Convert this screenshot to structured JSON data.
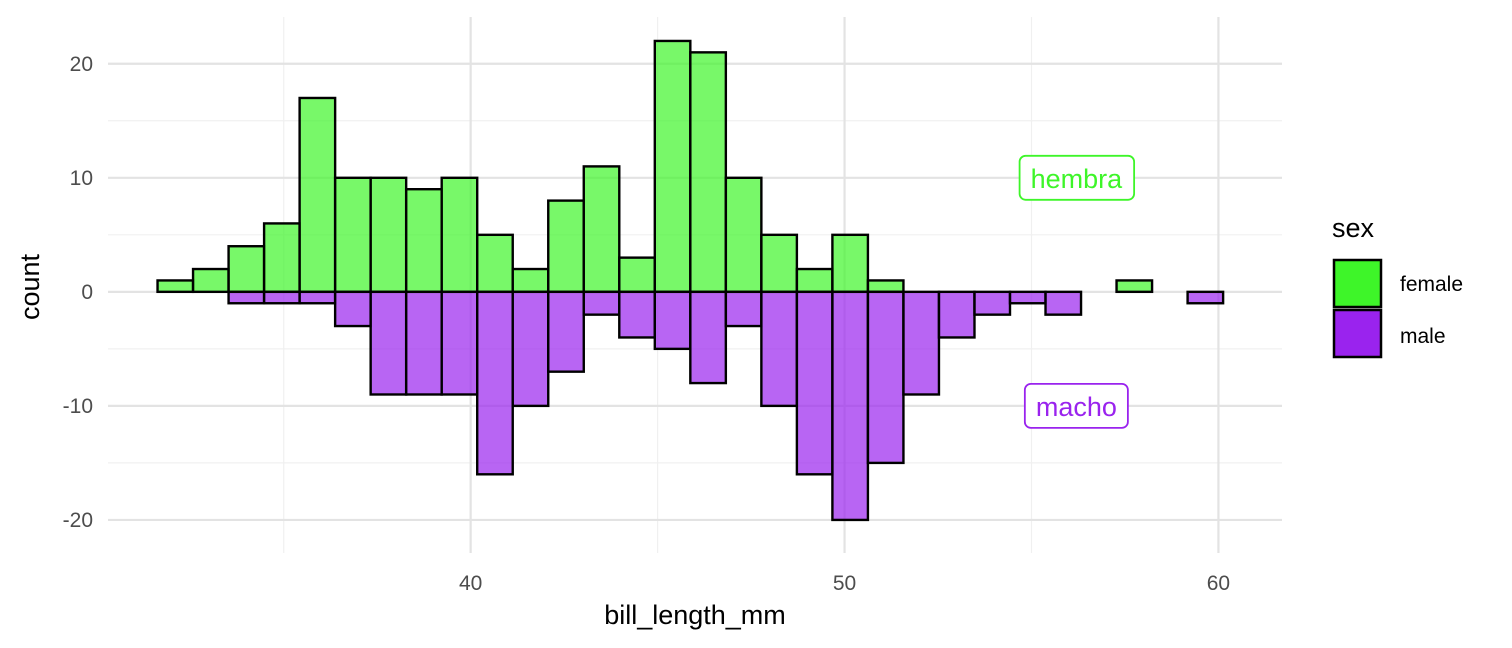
{
  "chart_data": {
    "type": "bar",
    "xlabel": "bill_length_mm",
    "ylabel": "count",
    "xlim": [
      30.3,
      61.7
    ],
    "ylim": [
      -22.9,
      24.1
    ],
    "x_ticks": [
      40,
      50,
      60
    ],
    "y_ticks": [
      -20,
      -10,
      0,
      10,
      20
    ],
    "grid": true,
    "bin_width": 0.95,
    "series": [
      {
        "name": "female",
        "color": "#3ef529",
        "direction": "up",
        "bin_centers": [
          32.1,
          33.05,
          34.0,
          34.95,
          35.9,
          36.85,
          37.8,
          38.75,
          39.7,
          40.65,
          41.6,
          42.55,
          43.5,
          44.45,
          45.4,
          46.35,
          47.3,
          48.25,
          49.2,
          50.15,
          51.1,
          52.05,
          53.0,
          53.95,
          54.9,
          55.85,
          56.8,
          57.75,
          58.7,
          59.65
        ],
        "values": [
          1,
          2,
          4,
          6,
          17,
          10,
          10,
          9,
          10,
          5,
          2,
          8,
          11,
          3,
          22,
          21,
          10,
          5,
          2,
          5,
          1,
          0,
          0,
          0,
          0,
          0,
          0,
          1,
          0,
          0
        ]
      },
      {
        "name": "male",
        "color": "#9a23ee",
        "direction": "down",
        "bin_centers": [
          32.1,
          33.05,
          34.0,
          34.95,
          35.9,
          36.85,
          37.8,
          38.75,
          39.7,
          40.65,
          41.6,
          42.55,
          43.5,
          44.45,
          45.4,
          46.35,
          47.3,
          48.25,
          49.2,
          50.15,
          51.1,
          52.05,
          53.0,
          53.95,
          54.9,
          55.85,
          56.8,
          57.75,
          58.7,
          59.65
        ],
        "values": [
          0,
          0,
          1,
          1,
          1,
          3,
          9,
          9,
          9,
          16,
          10,
          7,
          2,
          4,
          5,
          8,
          3,
          10,
          16,
          20,
          15,
          9,
          4,
          2,
          1,
          2,
          0,
          0,
          0,
          1
        ]
      }
    ],
    "legend": {
      "title": "sex",
      "position": "right",
      "entries": [
        {
          "label": "female",
          "color": "#3ef529"
        },
        {
          "label": "male",
          "color": "#9a23ee"
        }
      ]
    },
    "annotations": [
      {
        "text": "hembra",
        "x": 56.2,
        "y": 10,
        "color": "#3ef529"
      },
      {
        "text": "macho",
        "x": 56.2,
        "y": -10,
        "color": "#9a23ee"
      }
    ]
  }
}
